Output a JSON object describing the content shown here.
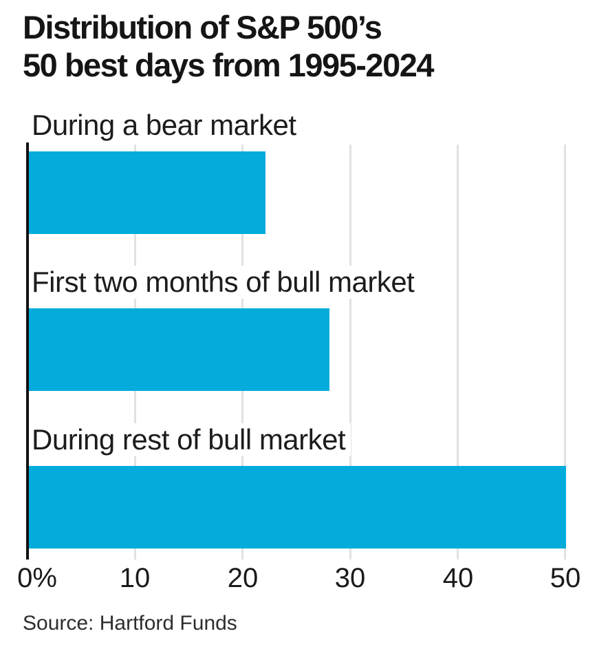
{
  "title": {
    "line1": "Distribution of S&P 500’s",
    "line2": "50 best days from 1995-2024"
  },
  "source_note": "Source: Hartford Funds",
  "colors": {
    "bar": "#05acdb",
    "axis": "#111111",
    "gridline": "#e1e1e1",
    "title_text": "#151515",
    "label_text": "#1c1c1c"
  },
  "chart_data": {
    "type": "bar",
    "orientation": "horizontal",
    "title": "Distribution of S&P 500’s 50 best days from 1995-2024",
    "categories": [
      "During a bear market",
      "First two months of bull market",
      "During rest of bull market"
    ],
    "values": [
      22,
      28,
      50
    ],
    "xlabel": "",
    "ylabel": "",
    "xlim": [
      0,
      50
    ],
    "x_ticks": [
      {
        "value": 0,
        "label": "0%"
      },
      {
        "value": 10,
        "label": "10"
      },
      {
        "value": 20,
        "label": "20"
      },
      {
        "value": 30,
        "label": "30"
      },
      {
        "value": 40,
        "label": "40"
      },
      {
        "value": 50,
        "label": "50"
      }
    ],
    "grid": "vertical-gridlines-on",
    "legend": "none",
    "source": "Source: Hartford Funds"
  }
}
